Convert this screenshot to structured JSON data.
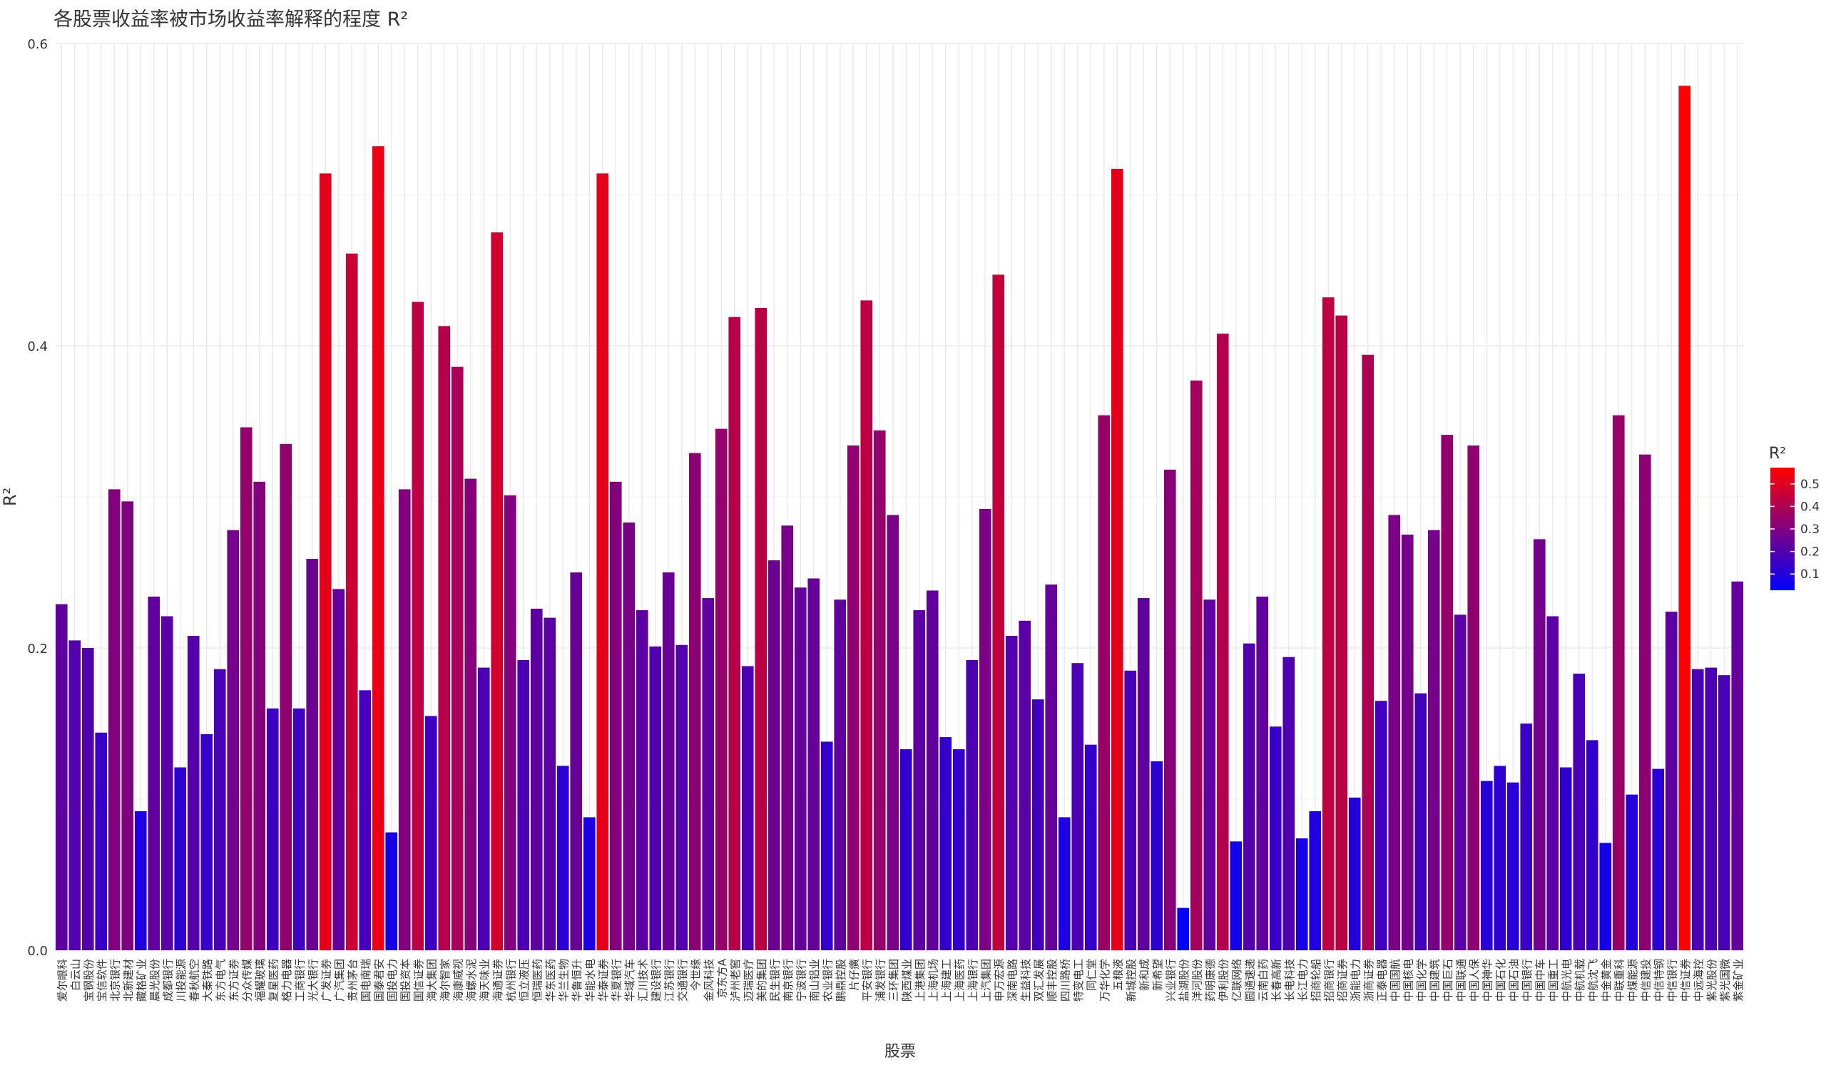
{
  "chart_data": {
    "type": "bar",
    "title": "各股票收益率被市场收益率解释的程度 R²",
    "xlabel": "股票",
    "ylabel": "R²",
    "legend_title": "R²",
    "categories": [
      "爱尔眼科",
      "白云山",
      "宝钢股份",
      "宝信软件",
      "北京银行",
      "北新建材",
      "藏格矿业",
      "晨光股份",
      "成都银行",
      "川投能源",
      "春秋航空",
      "大秦铁路",
      "东方电气",
      "东方证券",
      "分众传媒",
      "福耀玻璃",
      "复星医药",
      "格力电器",
      "工商银行",
      "光大银行",
      "广发证券",
      "广汽集团",
      "贵州茅台",
      "国电南瑞",
      "国泰君安",
      "国投电力",
      "国投资本",
      "国信证券",
      "海大集团",
      "海尔智家",
      "海康威视",
      "海螺水泥",
      "海天味业",
      "海通证券",
      "杭州银行",
      "恒立液压",
      "恒瑞医药",
      "华东医药",
      "华兰生物",
      "华鲁恒升",
      "华能水电",
      "华泰证券",
      "华夏银行",
      "华域汽车",
      "汇川技术",
      "建设银行",
      "江苏银行",
      "交通银行",
      "今世缘",
      "金风科技",
      "京东方A",
      "泸州老窖",
      "迈瑞医疗",
      "美的集团",
      "民生银行",
      "南京银行",
      "宁波银行",
      "南山铝业",
      "农业银行",
      "鹏鼎控股",
      "片仔癀",
      "平安银行",
      "浦发银行",
      "三环集团",
      "陕西煤业",
      "上港集团",
      "上海机场",
      "上海建工",
      "上海医药",
      "上海银行",
      "上汽集团",
      "申万宏源",
      "深南电路",
      "生益科技",
      "双汇发展",
      "顺丰控股",
      "四川路桥",
      "特变电工",
      "同仁堂",
      "万华化学",
      "五粮液",
      "新城控股",
      "新和成",
      "新希望",
      "兴业银行",
      "盐湖股份",
      "洋河股份",
      "药明康德",
      "伊利股份",
      "亿联网络",
      "圆通速递",
      "云南白药",
      "长春高新",
      "长电科技",
      "长江电力",
      "招商轮船",
      "招商银行",
      "招商证券",
      "浙能电力",
      "浙商证券",
      "正泰电器",
      "中国国航",
      "中国核电",
      "中国化学",
      "中国建筑",
      "中国巨石",
      "中国联通",
      "中国人保",
      "中国神华",
      "中国石化",
      "中国石油",
      "中国银行",
      "中国中车",
      "中国重工",
      "中航光电",
      "中航机载",
      "中航沈飞",
      "中金黄金",
      "中联重科",
      "中煤能源",
      "中信建投",
      "中信特钢",
      "中信银行",
      "中信证券",
      "中远海控",
      "紫光股份",
      "紫光国微",
      "紫金矿业"
    ],
    "values": [
      0.229,
      0.205,
      0.2,
      0.144,
      0.305,
      0.297,
      0.092,
      0.234,
      0.221,
      0.121,
      0.208,
      0.143,
      0.186,
      0.278,
      0.346,
      0.31,
      0.16,
      0.335,
      0.16,
      0.259,
      0.514,
      0.239,
      0.461,
      0.172,
      0.532,
      0.078,
      0.305,
      0.429,
      0.155,
      0.413,
      0.386,
      0.312,
      0.187,
      0.475,
      0.301,
      0.192,
      0.226,
      0.22,
      0.122,
      0.25,
      0.088,
      0.514,
      0.31,
      0.283,
      0.225,
      0.201,
      0.25,
      0.202,
      0.329,
      0.233,
      0.345,
      0.419,
      0.188,
      0.425,
      0.258,
      0.281,
      0.24,
      0.246,
      0.138,
      0.232,
      0.334,
      0.43,
      0.344,
      0.288,
      0.133,
      0.225,
      0.238,
      0.141,
      0.133,
      0.192,
      0.292,
      0.447,
      0.208,
      0.218,
      0.166,
      0.242,
      0.088,
      0.19,
      0.136,
      0.354,
      0.517,
      0.185,
      0.233,
      0.125,
      0.318,
      0.028,
      0.377,
      0.232,
      0.408,
      0.072,
      0.203,
      0.234,
      0.148,
      0.194,
      0.074,
      0.092,
      0.432,
      0.42,
      0.101,
      0.394,
      0.165,
      0.288,
      0.275,
      0.17,
      0.278,
      0.341,
      0.222,
      0.334,
      0.112,
      0.122,
      0.111,
      0.15,
      0.272,
      0.221,
      0.121,
      0.183,
      0.139,
      0.071,
      0.354,
      0.103,
      0.328,
      0.12,
      0.224,
      0.572,
      0.186,
      0.187,
      0.182,
      0.244
    ],
    "colorscale": {
      "low": "#0000ff",
      "high": "#ff0000"
    },
    "ylim": [
      0,
      0.6
    ],
    "yticks": [
      {
        "value": 0,
        "label": "0.0"
      },
      0.2,
      0.4,
      0.6
    ],
    "legend_ticks": [
      0.1,
      0.2,
      0.3,
      0.4,
      0.5
    ],
    "grid": true
  }
}
